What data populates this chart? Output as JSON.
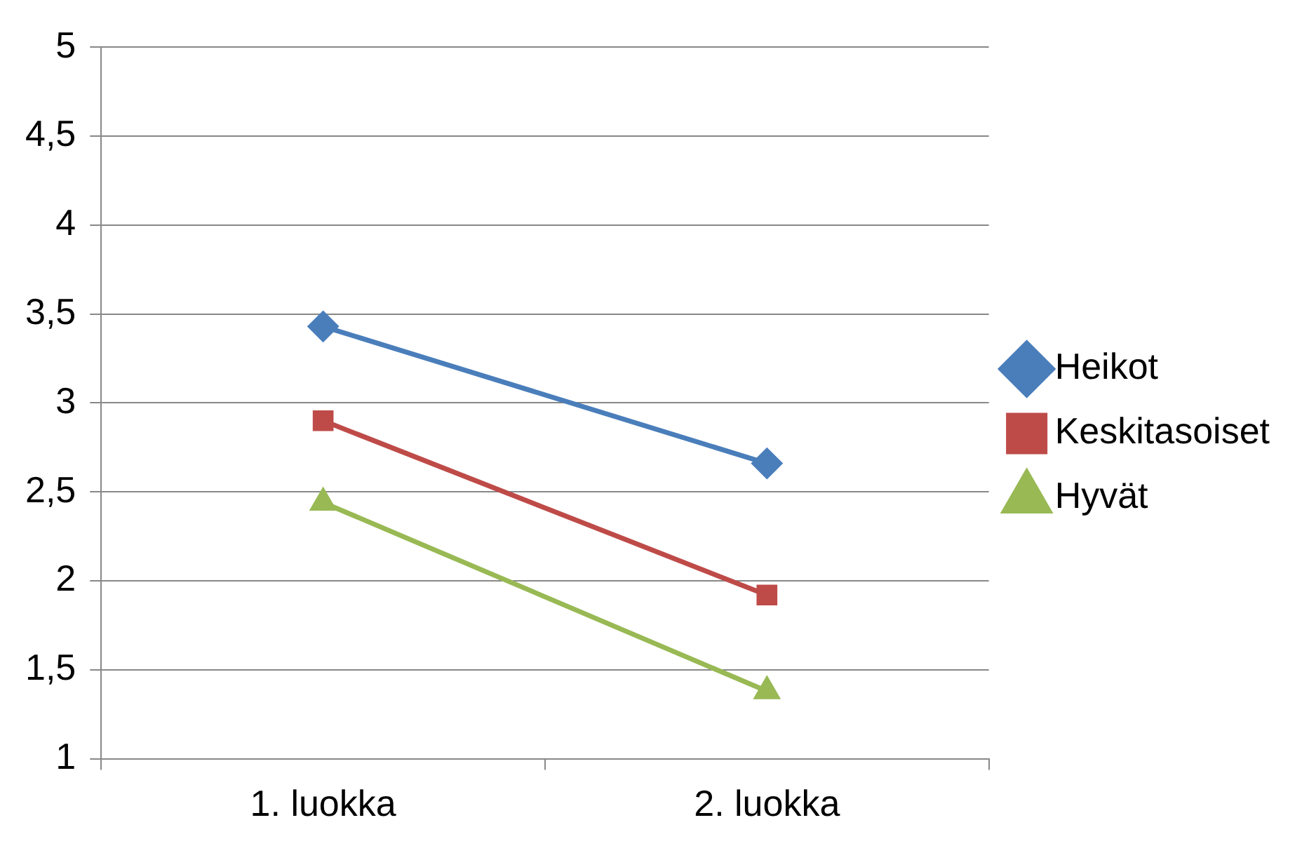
{
  "chart_data": {
    "type": "line",
    "categories": [
      "1. luokka",
      "2. luokka"
    ],
    "series": [
      {
        "name": "Heikot",
        "color": "#4a7ebb",
        "marker": "diamond",
        "values": [
          3.43,
          2.66
        ]
      },
      {
        "name": "Keskitasoiset",
        "color": "#be4b48",
        "marker": "square",
        "values": [
          2.9,
          1.92
        ]
      },
      {
        "name": "Hyvät",
        "color": "#98b954",
        "marker": "triangle",
        "values": [
          2.44,
          1.38
        ]
      }
    ],
    "ylim": [
      1,
      5
    ],
    "yticks": [
      1,
      {
        "value": 1.5,
        "label": "1,5"
      },
      2,
      {
        "value": 2.5,
        "label": "2,5"
      },
      3,
      {
        "value": 3.5,
        "label": "3,5"
      },
      4,
      {
        "value": 4.5,
        "label": "4,5"
      },
      5
    ],
    "grid": "y",
    "legend": "right"
  }
}
